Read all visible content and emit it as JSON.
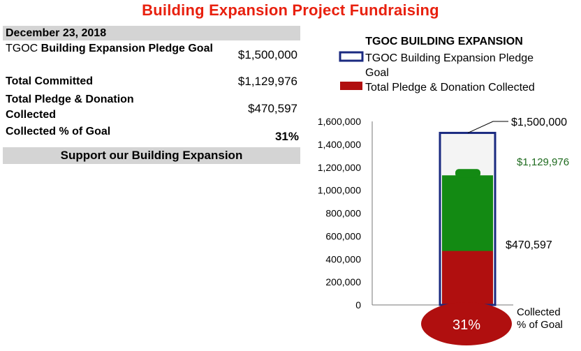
{
  "page": {
    "title": "Building Expansion Project Fundraising",
    "date": "December 23, 2018",
    "rows": [
      {
        "label_prefix": "TGOC",
        "label": " Building Expansion  Pledge Goal",
        "value": "$1,500,000"
      },
      {
        "label": "Total Committed",
        "value": "$1,129,976"
      },
      {
        "label": "Total Pledge & Donation Collected",
        "value": "$470,597"
      },
      {
        "label": "Collected % of Goal",
        "value": "31%"
      }
    ],
    "support_label": "Support our Building Expansion"
  },
  "chart_data": {
    "type": "bar",
    "title": "TGOC BUILDING EXPANSION",
    "ylim": [
      0,
      1600000
    ],
    "yticks": [
      0,
      200000,
      400000,
      600000,
      800000,
      1000000,
      1200000,
      1400000,
      1600000
    ],
    "ytick_labels": [
      "0",
      "200,000",
      "400,000",
      "600,000",
      "800,000",
      "1,000,000",
      "1,200,000",
      "1,400,000",
      "1,600,000"
    ],
    "series": [
      {
        "name": "TGOC Building Expansion  Pledge Goal",
        "value": 1500000,
        "color": "#1a2a80",
        "label": "$1,500,000"
      },
      {
        "name": "Total Committed",
        "value": 1129976,
        "color": "#138a13",
        "label": "$1,129,976",
        "label_color": "#1f6b1f"
      },
      {
        "name": "Total Pledge & Donation Collected",
        "value": 470597,
        "color": "#b00f0f",
        "label": "$470,597"
      }
    ],
    "legend": [
      {
        "label": "TGOC Building Expansion  Pledge Goal",
        "type": "outline",
        "color": "#1a2a80"
      },
      {
        "label": "Total Pledge & Donation Collected",
        "type": "fill",
        "color": "#b00f0f"
      }
    ],
    "bulb": {
      "text": "31%",
      "caption": [
        "Collected",
        "% of Goal"
      ],
      "color": "#b00f0f"
    },
    "legend_position": "top",
    "grid": false
  }
}
